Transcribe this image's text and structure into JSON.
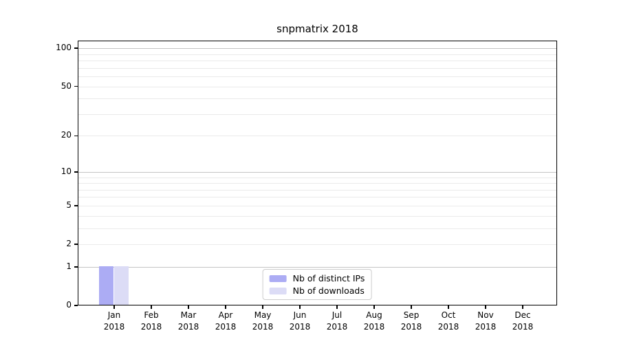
{
  "chart_data": {
    "type": "bar",
    "title": "snpmatrix 2018",
    "x_tick_labels": [
      {
        "month": "Jan",
        "year": "2018"
      },
      {
        "month": "Feb",
        "year": "2018"
      },
      {
        "month": "Mar",
        "year": "2018"
      },
      {
        "month": "Apr",
        "year": "2018"
      },
      {
        "month": "May",
        "year": "2018"
      },
      {
        "month": "Jun",
        "year": "2018"
      },
      {
        "month": "Jul",
        "year": "2018"
      },
      {
        "month": "Aug",
        "year": "2018"
      },
      {
        "month": "Sep",
        "year": "2018"
      },
      {
        "month": "Oct",
        "year": "2018"
      },
      {
        "month": "Nov",
        "year": "2018"
      },
      {
        "month": "Dec",
        "year": "2018"
      }
    ],
    "series": [
      {
        "name": "Nb of distinct IPs",
        "color": "#acacf4",
        "values": [
          1,
          0,
          0,
          0,
          0,
          0,
          0,
          0,
          0,
          0,
          0,
          0
        ]
      },
      {
        "name": "Nb of downloads",
        "color": "#dcdcf6",
        "values": [
          1,
          0,
          0,
          0,
          0,
          0,
          0,
          0,
          0,
          0,
          0,
          0
        ]
      }
    ],
    "y_axis": {
      "scale": "log1p",
      "min": 0,
      "max": 115,
      "ticks": [
        0,
        1,
        2,
        5,
        10,
        20,
        50,
        100
      ],
      "major_grid_values": [
        1,
        10,
        100
      ],
      "minor_grid_values": [
        2,
        3,
        4,
        5,
        6,
        7,
        8,
        9,
        20,
        30,
        40,
        50,
        60,
        70,
        80,
        90
      ]
    },
    "legend": {
      "position": "lower center"
    },
    "colors": {
      "major_grid": "#c4c4c4",
      "minor_grid": "#eaeaea",
      "spine": "#000000"
    }
  }
}
